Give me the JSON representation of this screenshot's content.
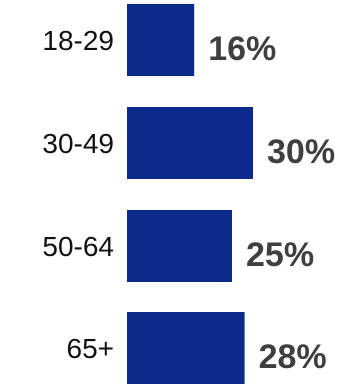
{
  "chart_data": {
    "type": "bar",
    "orientation": "horizontal",
    "categories": [
      "18-29",
      "30-49",
      "50-64",
      "65+"
    ],
    "values": [
      16,
      30,
      25,
      28
    ],
    "value_labels": [
      "16%",
      "30%",
      "25%",
      "28%"
    ],
    "title": "",
    "xlabel": "",
    "ylabel": "",
    "xlim": [
      0,
      30
    ],
    "grid": false,
    "legend": "none",
    "bar_color": "#0b2a8a",
    "label_color": "#3f3f3f"
  }
}
